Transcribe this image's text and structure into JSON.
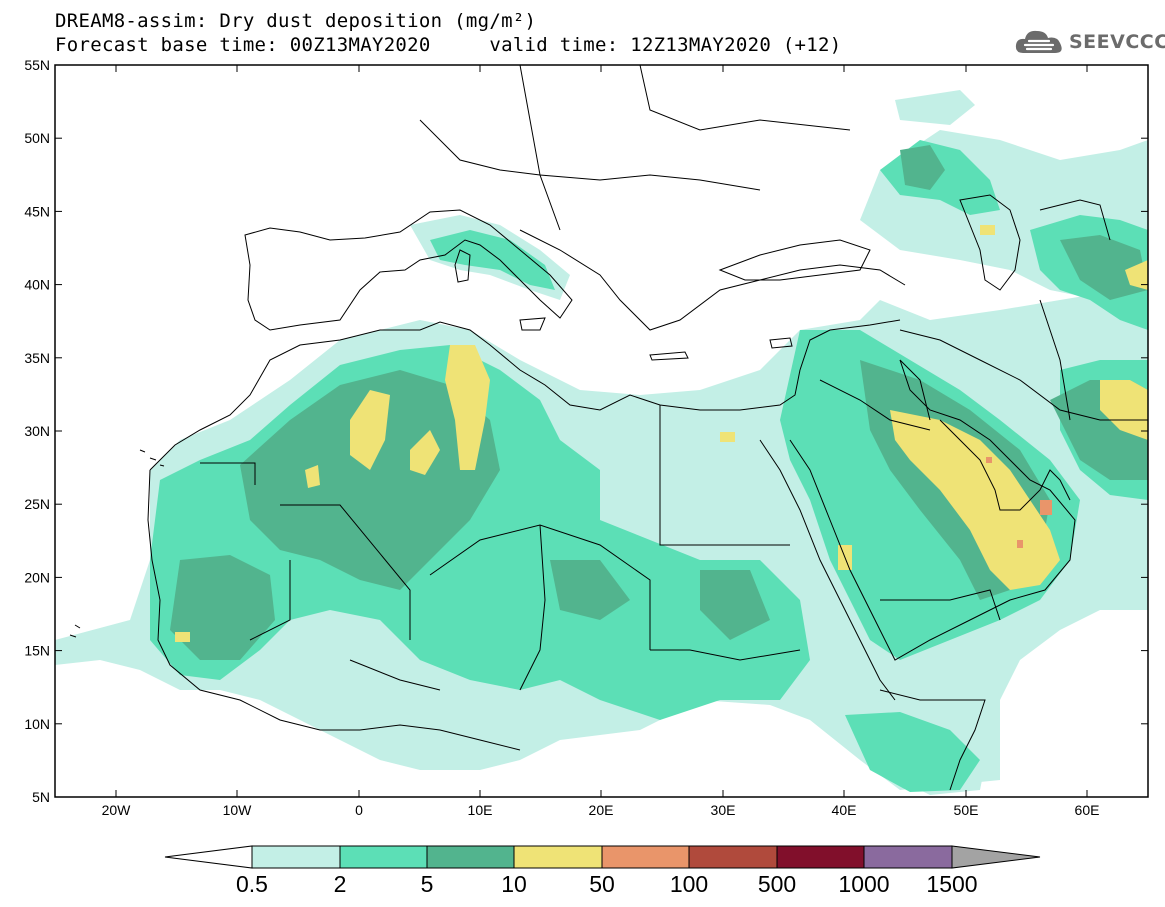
{
  "header": {
    "title": "DREAM8-assim: Dry dust deposition (mg/m²)",
    "subtitle": "Forecast base time: 00Z13MAY2020     valid time: 12Z13MAY2020 (+12)"
  },
  "logo": {
    "text": "SEEVCCC",
    "icon": "cloud-icon"
  },
  "map": {
    "lon_range": [
      -25,
      65
    ],
    "lat_range": [
      5,
      55
    ],
    "lon_ticks": [
      "20W",
      "10W",
      "0",
      "10E",
      "20E",
      "30E",
      "40E",
      "50E",
      "60E"
    ],
    "lat_ticks": [
      "55N",
      "50N",
      "45N",
      "40N",
      "35N",
      "30N",
      "25N",
      "20N",
      "15N",
      "10N",
      "5N"
    ]
  },
  "colorbar": {
    "labels": [
      "0.5",
      "2",
      "5",
      "10",
      "50",
      "100",
      "500",
      "1000",
      "1500"
    ],
    "colors": [
      "#c3efe6",
      "#5cdfb6",
      "#52b48e",
      "#efe376",
      "#e9956a",
      "#b04a3c",
      "#810f2b",
      "#8a6a9e",
      "#a3a3a3"
    ]
  },
  "colors": {
    "c05": "#c3efe6",
    "c2": "#5cdfb6",
    "c5": "#52b48e",
    "c10": "#efe376",
    "c50": "#e9956a"
  }
}
